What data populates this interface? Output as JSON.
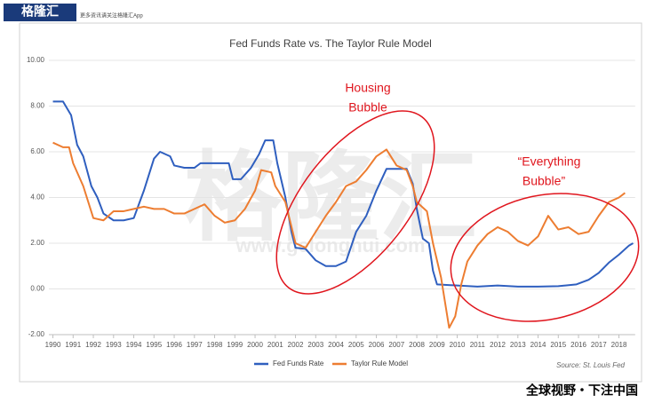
{
  "branding": {
    "logo": "格隆汇",
    "tagline": "更多资讯请关注格隆汇App",
    "watermark": "格隆汇",
    "watermark_url": "www.gelonghui.com",
    "footer": "全球视野・下注中国"
  },
  "chart_data": {
    "type": "line",
    "title": "Fed Funds Rate vs. The Taylor Rule Model",
    "annotations": [
      [
        "Housing",
        "Bubble"
      ],
      [
        "“Everything",
        "Bubble”"
      ]
    ],
    "source": "Source: St. Louis Fed",
    "xlim": [
      1989.8,
      2018.8
    ],
    "xticks": [
      1990,
      1991,
      1992,
      1993,
      1994,
      1995,
      1996,
      1997,
      1998,
      1999,
      2000,
      2001,
      2002,
      2003,
      2004,
      2005,
      2006,
      2007,
      2008,
      2009,
      2010,
      2011,
      2012,
      2013,
      2014,
      2015,
      2016,
      2017,
      2018
    ],
    "ylim": [
      -2,
      10
    ],
    "yticks": [
      {
        "value": -2,
        "label": "-2.00"
      },
      {
        "value": 0,
        "label": "0.00"
      },
      {
        "value": 2,
        "label": "2.00"
      },
      {
        "value": 4,
        "label": "4.00"
      },
      {
        "value": 6,
        "label": "6.00"
      },
      {
        "value": 8,
        "label": "8.00"
      },
      {
        "value": 10,
        "label": "10.00"
      }
    ],
    "grid": true,
    "series": [
      {
        "name": "Fed Funds Rate",
        "color": "#2f5fbf",
        "x": [
          1990,
          1990.5,
          1990.9,
          1991.2,
          1991.5,
          1991.9,
          1992.2,
          1992.5,
          1993,
          1993.5,
          1994,
          1994.5,
          1995,
          1995.3,
          1995.8,
          1996,
          1996.5,
          1997,
          1997.3,
          1998,
          1998.7,
          1998.9,
          1999.3,
          1999.8,
          2000.2,
          2000.5,
          2000.9,
          2001.1,
          2001.5,
          2001.8,
          2002,
          2002.5,
          2003,
          2003.5,
          2004,
          2004.5,
          2005,
          2005.5,
          2006,
          2006.5,
          2007,
          2007.5,
          2007.8,
          2008,
          2008.3,
          2008.6,
          2008.8,
          2009,
          2010,
          2011,
          2012,
          2013,
          2014,
          2015,
          2015.9,
          2016.5,
          2017,
          2017.5,
          2018,
          2018.5,
          2018.7
        ],
        "values": [
          8.2,
          8.2,
          7.6,
          6.3,
          5.8,
          4.5,
          4.0,
          3.3,
          3.0,
          3.0,
          3.1,
          4.3,
          5.7,
          6.0,
          5.8,
          5.4,
          5.3,
          5.3,
          5.5,
          5.5,
          5.5,
          4.8,
          4.8,
          5.3,
          5.9,
          6.5,
          6.5,
          5.5,
          4.0,
          2.5,
          1.8,
          1.75,
          1.25,
          1.0,
          1.0,
          1.2,
          2.5,
          3.2,
          4.3,
          5.25,
          5.25,
          5.25,
          4.6,
          3.5,
          2.2,
          2.0,
          0.8,
          0.2,
          0.15,
          0.1,
          0.15,
          0.1,
          0.1,
          0.12,
          0.2,
          0.4,
          0.7,
          1.15,
          1.5,
          1.9,
          2.0
        ]
      },
      {
        "name": "Taylor Rule Model",
        "color": "#ed7d31",
        "x": [
          1990,
          1990.5,
          1990.8,
          1991,
          1991.5,
          1992,
          1992.5,
          1993,
          1993.5,
          1994,
          1994.5,
          1995,
          1995.5,
          1996,
          1996.5,
          1997,
          1997.5,
          1998,
          1998.5,
          1999,
          1999.5,
          2000,
          2000.3,
          2000.8,
          2001,
          2001.5,
          2002,
          2002.5,
          2003,
          2003.5,
          2004,
          2004.5,
          2005,
          2005.5,
          2006,
          2006.5,
          2007,
          2007.5,
          2007.8,
          2008,
          2008.5,
          2008.8,
          2009.2,
          2009.6,
          2009.9,
          2010.2,
          2010.5,
          2011,
          2011.5,
          2012,
          2012.5,
          2013,
          2013.5,
          2014,
          2014.5,
          2015,
          2015.5,
          2016,
          2016.5,
          2017,
          2017.5,
          2018,
          2018.3
        ],
        "values": [
          6.4,
          6.2,
          6.2,
          5.5,
          4.5,
          3.1,
          3.0,
          3.4,
          3.4,
          3.5,
          3.6,
          3.5,
          3.5,
          3.3,
          3.3,
          3.5,
          3.7,
          3.2,
          2.9,
          3.0,
          3.5,
          4.3,
          5.2,
          5.1,
          4.5,
          3.8,
          2.0,
          1.8,
          2.5,
          3.2,
          3.8,
          4.5,
          4.7,
          5.2,
          5.8,
          6.1,
          5.4,
          5.2,
          4.5,
          3.8,
          3.4,
          2.0,
          0.5,
          -1.7,
          -1.2,
          0.2,
          1.2,
          1.9,
          2.4,
          2.7,
          2.5,
          2.1,
          1.9,
          2.3,
          3.2,
          2.6,
          2.7,
          2.4,
          2.5,
          3.2,
          3.8,
          4.0,
          4.2
        ]
      }
    ]
  }
}
